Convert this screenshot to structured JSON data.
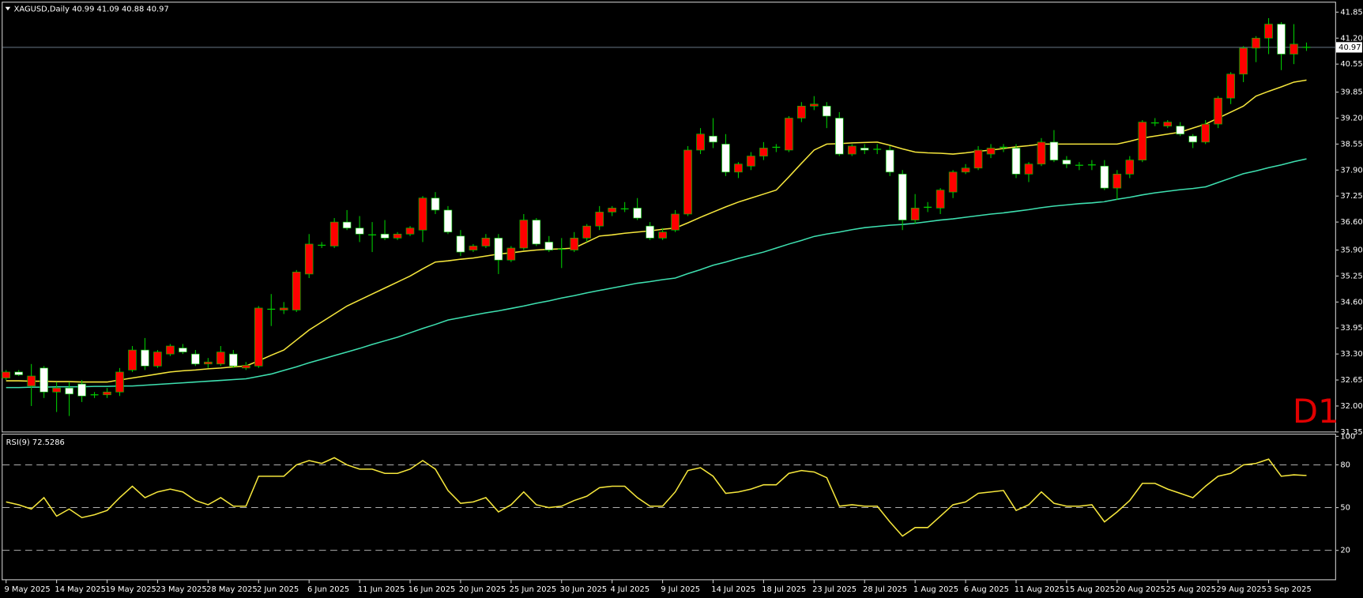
{
  "chart_data": [
    {
      "type": "candlestick",
      "title": "XAGUSD,Daily  40.99 41.09 40.88 40.97",
      "annotation": "D1",
      "current_price": 40.97,
      "bull_color": "#ff0000",
      "bear_color": "#ffffff",
      "wick_color": "#00c800",
      "price_line_color": "#778899",
      "ylim": [
        31.35,
        42.11
      ],
      "yticks": [
        41.85,
        {
          "value": 41.2,
          "label": "41.20"
        },
        40.55,
        39.85,
        {
          "value": 39.2,
          "label": "39.20"
        },
        38.55,
        {
          "value": 37.9,
          "label": "37.90"
        },
        37.25,
        {
          "value": 36.6,
          "label": "36.60"
        },
        {
          "value": 35.9,
          "label": "35.90"
        },
        35.25,
        {
          "value": 34.6,
          "label": "34.60"
        },
        33.95,
        {
          "value": 33.3,
          "label": "33.30"
        },
        32.65,
        {
          "value": 32,
          "label": "32.00"
        },
        31.35
      ],
      "open": [
        32.7,
        32.85,
        32.5,
        32.95,
        32.35,
        32.45,
        32.55,
        32.25,
        32.28,
        32.35,
        32.9,
        33.4,
        33.0,
        33.3,
        33.45,
        33.3,
        33.05,
        33.05,
        33.3,
        32.95,
        33.0,
        34.45,
        34.4,
        34.4,
        35.3,
        36.0,
        36.0,
        36.6,
        36.45,
        36.3,
        36.3,
        36.2,
        36.3,
        36.4,
        37.2,
        36.9,
        36.25,
        35.9,
        36.0,
        36.2,
        35.65,
        35.95,
        36.65,
        36.1,
        35.9,
        35.9,
        36.2,
        36.5,
        36.85,
        36.95,
        36.95,
        36.5,
        36.2,
        36.4,
        36.8,
        38.4,
        38.75,
        38.55,
        37.85,
        38.0,
        38.25,
        38.45,
        38.4,
        39.2,
        39.5,
        39.5,
        39.2,
        38.3,
        38.45,
        38.4,
        38.4,
        37.8,
        36.65,
        36.95,
        36.95,
        37.35,
        37.85,
        37.95,
        38.3,
        38.45,
        38.45,
        37.8,
        38.05,
        38.6,
        38.15,
        38.0,
        38.0,
        38.0,
        37.45,
        37.8,
        38.15,
        39.1,
        39.0,
        39.0,
        38.75,
        38.6,
        39.05,
        39.7,
        40.3,
        40.95,
        41.2,
        41.55,
        40.8,
        40.99
      ],
      "high": [
        32.9,
        32.9,
        33.05,
        33.0,
        32.6,
        32.6,
        32.65,
        32.35,
        32.45,
        32.95,
        33.5,
        33.7,
        33.4,
        33.55,
        33.55,
        33.4,
        33.2,
        33.5,
        33.4,
        33.1,
        34.5,
        34.8,
        34.6,
        35.4,
        36.3,
        36.1,
        36.7,
        36.9,
        36.75,
        36.6,
        36.65,
        36.35,
        36.5,
        37.25,
        37.35,
        37.0,
        36.4,
        36.05,
        36.3,
        36.3,
        36.0,
        36.8,
        36.7,
        36.25,
        36.2,
        36.35,
        36.55,
        37.0,
        37.0,
        37.1,
        37.2,
        36.6,
        36.45,
        36.9,
        38.5,
        38.95,
        39.2,
        38.8,
        38.1,
        38.35,
        38.6,
        38.55,
        39.25,
        39.6,
        39.75,
        39.6,
        39.35,
        38.55,
        38.55,
        38.55,
        38.5,
        37.9,
        37.3,
        37.1,
        37.45,
        37.9,
        38.05,
        38.5,
        38.55,
        38.55,
        38.55,
        38.1,
        38.7,
        38.9,
        38.25,
        38.1,
        38.15,
        38.15,
        37.9,
        38.25,
        39.15,
        39.2,
        39.15,
        39.1,
        38.8,
        39.15,
        39.75,
        40.35,
        41.0,
        41.25,
        41.7,
        41.6,
        41.55,
        41.09
      ],
      "low": [
        32.65,
        32.75,
        32.0,
        32.2,
        31.85,
        31.75,
        32.1,
        32.2,
        32.2,
        32.25,
        32.85,
        32.9,
        32.95,
        33.25,
        33.3,
        33.0,
        32.95,
        33.0,
        32.95,
        32.9,
        32.95,
        34.0,
        34.3,
        34.35,
        35.2,
        35.95,
        35.95,
        36.4,
        36.1,
        35.85,
        36.15,
        36.15,
        36.25,
        36.1,
        36.8,
        36.3,
        35.75,
        35.85,
        35.95,
        35.3,
        35.6,
        35.9,
        36.0,
        35.85,
        35.45,
        35.85,
        36.1,
        36.4,
        36.75,
        36.85,
        36.65,
        36.15,
        36.15,
        36.35,
        36.75,
        38.3,
        38.45,
        37.75,
        37.7,
        37.9,
        38.15,
        38.35,
        38.35,
        39.1,
        39.4,
        38.95,
        38.25,
        38.25,
        38.3,
        38.3,
        37.75,
        36.4,
        36.55,
        36.85,
        36.8,
        37.2,
        37.8,
        37.9,
        38.2,
        38.35,
        37.7,
        37.6,
        38.0,
        38.1,
        37.95,
        37.9,
        37.9,
        37.4,
        37.15,
        37.7,
        38.1,
        39.0,
        38.95,
        38.75,
        38.45,
        38.55,
        38.95,
        39.55,
        40.1,
        40.6,
        40.8,
        40.4,
        40.55,
        40.88
      ],
      "close": [
        32.85,
        32.78,
        32.75,
        32.35,
        32.45,
        32.3,
        32.25,
        32.28,
        32.35,
        32.85,
        33.4,
        33.0,
        33.35,
        33.5,
        33.35,
        33.05,
        33.1,
        33.35,
        33.0,
        33.02,
        34.45,
        34.42,
        34.45,
        35.35,
        36.05,
        36.02,
        36.6,
        36.45,
        36.3,
        36.28,
        36.2,
        36.3,
        36.45,
        37.2,
        36.9,
        36.35,
        35.85,
        36.0,
        36.2,
        35.65,
        35.95,
        36.65,
        36.05,
        35.9,
        35.92,
        36.2,
        36.5,
        36.85,
        36.95,
        36.93,
        36.7,
        36.2,
        36.35,
        36.8,
        38.4,
        38.8,
        38.6,
        37.85,
        38.05,
        38.25,
        38.45,
        38.47,
        39.2,
        39.5,
        39.55,
        39.25,
        38.3,
        38.5,
        38.4,
        38.42,
        37.85,
        36.65,
        36.95,
        36.97,
        37.4,
        37.85,
        37.95,
        38.4,
        38.45,
        38.47,
        37.8,
        38.05,
        38.6,
        38.15,
        38.05,
        38.02,
        38.03,
        37.45,
        37.8,
        38.15,
        39.1,
        39.08,
        39.1,
        38.8,
        38.6,
        39.05,
        39.7,
        40.3,
        40.95,
        41.2,
        41.55,
        40.8,
        41.05,
        40.97
      ],
      "series": [
        {
          "color": "#f5e63c",
          "values": [
            32.63,
            32.63,
            32.62,
            32.62,
            32.61,
            32.61,
            32.6,
            32.6,
            32.6,
            32.65,
            32.7,
            32.75,
            32.8,
            32.85,
            32.88,
            32.9,
            32.93,
            32.95,
            32.98,
            33.0,
            33.13,
            33.27,
            33.4,
            33.65,
            33.9,
            34.1,
            34.3,
            34.5,
            34.65,
            34.8,
            34.95,
            35.1,
            35.25,
            35.43,
            35.6,
            35.63,
            35.67,
            35.7,
            35.75,
            35.8,
            35.83,
            35.87,
            35.9,
            35.92,
            35.93,
            35.95,
            36.1,
            36.25,
            36.28,
            36.32,
            36.35,
            36.38,
            36.42,
            36.45,
            36.58,
            36.72,
            36.85,
            36.98,
            37.1,
            37.2,
            37.3,
            37.4,
            37.73,
            38.07,
            38.4,
            38.55,
            38.56,
            38.58,
            38.59,
            38.6,
            38.52,
            38.43,
            38.35,
            38.33,
            38.32,
            38.3,
            38.33,
            38.37,
            38.4,
            38.44,
            38.48,
            38.51,
            38.55,
            38.55,
            38.55,
            38.55,
            38.55,
            38.55,
            38.55,
            38.62,
            38.7,
            38.75,
            38.8,
            38.85,
            38.95,
            39.05,
            39.2,
            39.35,
            39.5,
            39.75,
            39.87,
            39.98,
            40.1,
            40.15
          ]
        },
        {
          "color": "#3ee0b0",
          "values": [
            32.46,
            32.46,
            32.47,
            32.47,
            32.48,
            32.48,
            32.48,
            32.49,
            32.49,
            32.5,
            32.5,
            32.52,
            32.54,
            32.56,
            32.58,
            32.6,
            32.62,
            32.64,
            32.66,
            32.68,
            32.74,
            32.8,
            32.89,
            32.98,
            33.08,
            33.17,
            33.26,
            33.35,
            33.44,
            33.54,
            33.63,
            33.72,
            33.83,
            33.94,
            34.04,
            34.15,
            34.21,
            34.27,
            34.33,
            34.38,
            34.44,
            34.5,
            34.57,
            34.63,
            34.7,
            34.76,
            34.83,
            34.89,
            34.95,
            35.01,
            35.07,
            35.11,
            35.16,
            35.2,
            35.31,
            35.41,
            35.52,
            35.6,
            35.69,
            35.77,
            35.85,
            35.95,
            36.05,
            36.14,
            36.24,
            36.3,
            36.35,
            36.41,
            36.46,
            36.49,
            36.52,
            36.54,
            36.57,
            36.61,
            36.65,
            36.68,
            36.72,
            36.76,
            36.8,
            36.83,
            36.87,
            36.91,
            36.96,
            37.0,
            37.03,
            37.06,
            37.08,
            37.11,
            37.17,
            37.22,
            37.28,
            37.33,
            37.37,
            37.41,
            37.44,
            37.48,
            37.59,
            37.7,
            37.81,
            37.88,
            37.96,
            38.03,
            38.11,
            38.18
          ]
        }
      ]
    },
    {
      "type": "line",
      "title": "RSI(9) 72.5286",
      "color": "#f5e63c",
      "ylim": [
        0,
        100
      ],
      "yticks": [
        100,
        80,
        50,
        20
      ],
      "levels": [
        80,
        50,
        20
      ],
      "categories": [
        "9 May 2025",
        null,
        null,
        null,
        "14 May 2025",
        null,
        null,
        null,
        "19 May 2025",
        null,
        null,
        null,
        "23 May 2025",
        null,
        null,
        null,
        "28 May 2025",
        null,
        null,
        null,
        "2 Jun 2025",
        null,
        null,
        null,
        "6 Jun 2025",
        null,
        null,
        null,
        "11 Jun 2025",
        null,
        null,
        null,
        "16 Jun 2025",
        null,
        null,
        null,
        "20 Jun 2025",
        null,
        null,
        null,
        "25 Jun 2025",
        null,
        null,
        null,
        "30 Jun 2025",
        null,
        null,
        null,
        "4 Jul 2025",
        null,
        null,
        null,
        "9 Jul 2025",
        null,
        null,
        null,
        "14 Jul 2025",
        null,
        null,
        null,
        "18 Jul 2025",
        null,
        null,
        null,
        "23 Jul 2025",
        null,
        null,
        null,
        "28 Jul 2025",
        null,
        null,
        null,
        "1 Aug 2025",
        null,
        null,
        null,
        "6 Aug 2025",
        null,
        null,
        null,
        "11 Aug 2025",
        null,
        null,
        null,
        "15 Aug 2025",
        null,
        null,
        null,
        "20 Aug 2025",
        null,
        null,
        null,
        "25 Aug 2025",
        null,
        null,
        null,
        "29 Aug 2025",
        null,
        null,
        null,
        "3 Sep 2025",
        null,
        null,
        null
      ],
      "values": [
        54,
        52,
        49,
        57,
        44,
        49,
        43,
        45,
        48,
        57,
        65,
        57,
        61,
        63,
        61,
        55,
        52,
        57,
        51,
        51,
        72,
        72,
        72,
        80,
        83,
        81,
        85,
        80,
        77,
        77,
        74,
        74,
        77,
        83,
        77,
        62,
        53,
        54,
        57,
        47,
        52,
        61,
        52,
        50,
        51,
        55,
        58,
        64,
        65,
        65,
        57,
        51,
        51,
        61,
        76,
        78,
        72,
        60,
        61,
        63,
        66,
        66,
        74,
        76,
        75,
        71,
        51,
        52,
        51,
        51,
        40,
        30,
        36,
        36,
        44,
        52,
        54,
        60,
        61,
        62,
        48,
        52,
        61,
        53,
        51,
        51,
        52,
        40,
        47,
        55,
        67,
        67,
        63,
        60,
        57,
        65,
        72,
        74,
        80,
        81,
        84,
        72,
        73,
        72.5286
      ]
    }
  ]
}
